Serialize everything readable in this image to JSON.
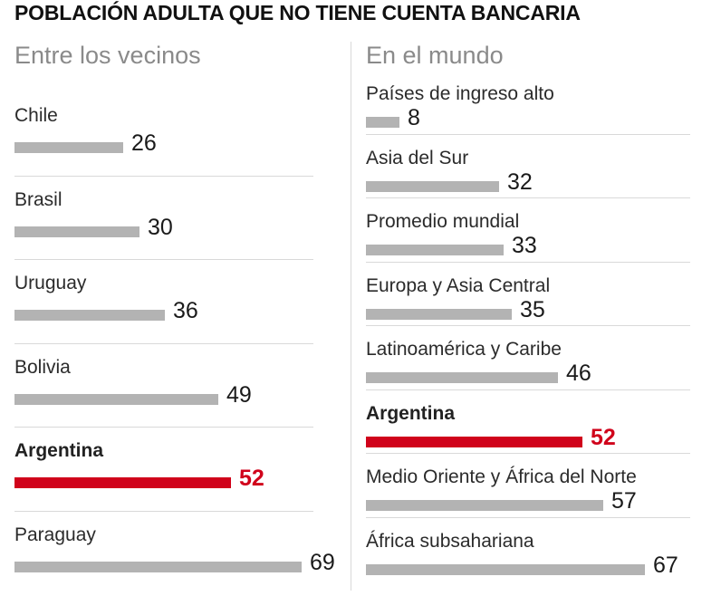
{
  "title": "POBLACIÓN ADULTA QUE NO TIENE CUENTA BANCARIA",
  "colors": {
    "bar": "#b3b3b3",
    "highlight": "#d0021b",
    "separator": "#d9d9d9"
  },
  "chart_data": [
    {
      "type": "bar",
      "orientation": "horizontal",
      "title": "Entre los vecinos",
      "categories": [
        "Chile",
        "Brasil",
        "Uruguay",
        "Bolivia",
        "Argentina",
        "Paraguay"
      ],
      "values": [
        26,
        30,
        36,
        49,
        52,
        69
      ],
      "highlight": "Argentina"
    },
    {
      "type": "bar",
      "orientation": "horizontal",
      "title": "En el mundo",
      "categories": [
        "Países de ingreso alto",
        "Asia del Sur",
        "Promedio mundial",
        "Europa y Asia Central",
        "Latinoamérica y Caribe",
        "Argentina",
        "Medio Oriente y África del Norte",
        "África subsahariana"
      ],
      "values": [
        8,
        32,
        33,
        35,
        46,
        52,
        57,
        67
      ],
      "highlight": "Argentina"
    }
  ]
}
